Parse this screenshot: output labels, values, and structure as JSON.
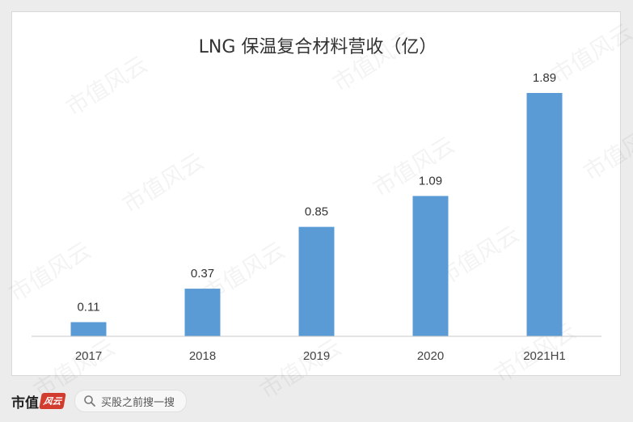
{
  "chart_data": {
    "type": "bar",
    "title": "LNG 保温复合材料营收（亿）",
    "categories": [
      "2017",
      "2018",
      "2019",
      "2020",
      "2021H1"
    ],
    "values": [
      0.11,
      0.37,
      0.85,
      1.09,
      1.89
    ],
    "ylim": [
      0,
      1.89
    ],
    "bar_color": "#5b9bd5",
    "grid": false,
    "legend": "none"
  },
  "watermark": "市值风云",
  "footer": {
    "brand_text": "市值",
    "brand_mark": "风云",
    "search_placeholder": "买股之前搜一搜"
  }
}
